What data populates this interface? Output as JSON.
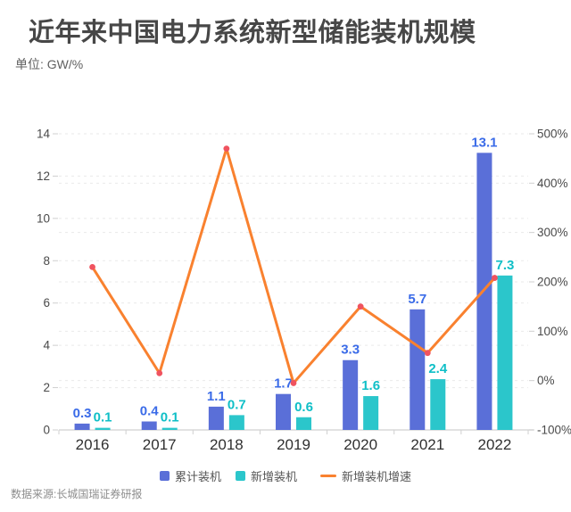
{
  "header": {
    "title": "近年来中国电力系统新型储能装机规模",
    "unit": "单位: GW/%"
  },
  "footer": {
    "source": "数据来源:长城国瑞证券研报"
  },
  "legend": {
    "items": [
      {
        "key": "cumulative",
        "label": "累计装机"
      },
      {
        "key": "new",
        "label": "新增装机"
      },
      {
        "key": "growth",
        "label": "新增装机增速"
      }
    ]
  },
  "chart_data": {
    "type": "bar",
    "combo": "bar+line",
    "title": "近年来中国电力系统新型储能装机规模",
    "unit": "GW/%",
    "categories": [
      "2016",
      "2017",
      "2018",
      "2019",
      "2020",
      "2021",
      "2022"
    ],
    "series": [
      {
        "key": "cumulative",
        "name": "累计装机",
        "chart": "bar",
        "axis": "left",
        "color": "#5A6FD8",
        "label_color": "#3A6BE8",
        "values": [
          0.3,
          0.4,
          1.1,
          1.7,
          3.3,
          5.7,
          13.1
        ]
      },
      {
        "key": "new",
        "name": "新增装机",
        "chart": "bar",
        "axis": "left",
        "color": "#2BC6CB",
        "label_color": "#0FBFC7",
        "values": [
          0.1,
          0.1,
          0.7,
          0.6,
          1.6,
          2.4,
          7.3
        ]
      },
      {
        "key": "growth",
        "name": "新增装机增速",
        "chart": "line",
        "axis": "right",
        "color": "#F9812F",
        "point_color": "#F0535F",
        "unit": "%",
        "values": [
          230,
          15,
          470,
          -5,
          150,
          56,
          208
        ]
      }
    ],
    "left_axis": {
      "min": 0,
      "max": 14,
      "tick_step": 2,
      "tick_labels": [
        "0",
        "2",
        "4",
        "6",
        "8",
        "10",
        "12",
        "14"
      ]
    },
    "right_axis": {
      "min": -100,
      "max": 500,
      "tick_step": 100,
      "tick_labels": [
        "-100%",
        "0%",
        "100%",
        "200%",
        "300%",
        "400%",
        "500%"
      ]
    },
    "grid": {
      "dashed": true,
      "color": "#e9e9e9"
    },
    "legend_position": "bottom"
  }
}
